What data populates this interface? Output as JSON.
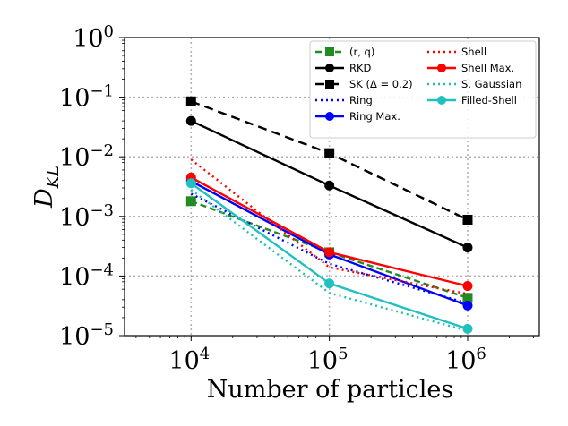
{
  "chart_data": {
    "type": "line",
    "xlabel": "Number of particles",
    "ylabel_main": "D",
    "ylabel_sub": "KL",
    "xscale": "log",
    "yscale": "log",
    "xlim": [
      3300,
      3300000
    ],
    "ylim": [
      1e-05,
      1
    ],
    "grid": true,
    "legend_position": "top-right",
    "x_ticks": [
      {
        "value": 10000,
        "base": "10",
        "exp": "4"
      },
      {
        "value": 100000,
        "base": "10",
        "exp": "5"
      },
      {
        "value": 1000000,
        "base": "10",
        "exp": "6"
      }
    ],
    "y_ticks": [
      {
        "value": 1,
        "base": "10",
        "exp": "0"
      },
      {
        "value": 0.1,
        "base": "10",
        "exp": "−1"
      },
      {
        "value": 0.01,
        "base": "10",
        "exp": "−2"
      },
      {
        "value": 0.001,
        "base": "10",
        "exp": "−3"
      },
      {
        "value": 0.0001,
        "base": "10",
        "exp": "−4"
      },
      {
        "value": 1e-05,
        "base": "10",
        "exp": "−5"
      }
    ],
    "x": [
      10000,
      100000,
      1000000
    ],
    "series": [
      {
        "name": "(r, q)",
        "color": "#228b22",
        "dash": "7,4",
        "marker": "square",
        "values": [
          0.0018,
          0.00025,
          4.3e-05
        ]
      },
      {
        "name": "RKD",
        "color": "#000000",
        "dash": "",
        "marker": "circle",
        "values": [
          0.04,
          0.0033,
          0.0003
        ]
      },
      {
        "name": "SK (Δ = 0.2)",
        "color": "#000000",
        "dash": "10,6",
        "marker": "square",
        "values": [
          0.085,
          0.0115,
          0.00088
        ]
      },
      {
        "name": "Ring",
        "color": "#0000ff",
        "dash": "2,4",
        "marker": "none",
        "values": [
          0.0024,
          0.00016,
          3.5e-05
        ]
      },
      {
        "name": "Ring Max.",
        "color": "#0000ff",
        "dash": "",
        "marker": "circle",
        "values": [
          0.0039,
          0.00023,
          3.2e-05
        ]
      },
      {
        "name": "Shell",
        "color": "#ff0000",
        "dash": "2,4",
        "marker": "none",
        "values": [
          0.009,
          0.00014,
          5e-05
        ]
      },
      {
        "name": "Shell Max.",
        "color": "#ff0000",
        "dash": "",
        "marker": "circle",
        "values": [
          0.0045,
          0.00025,
          6.8e-05
        ]
      },
      {
        "name": "S. Gaussian",
        "color": "#20c0b0",
        "dash": "2,4",
        "marker": "none",
        "values": [
          0.0028,
          5.2e-05,
          1.2e-05
        ]
      },
      {
        "name": "Filled-Shell",
        "color": "#20c0c0",
        "dash": "",
        "marker": "circle",
        "values": [
          0.0036,
          7.5e-05,
          1.3e-05
        ]
      }
    ]
  }
}
